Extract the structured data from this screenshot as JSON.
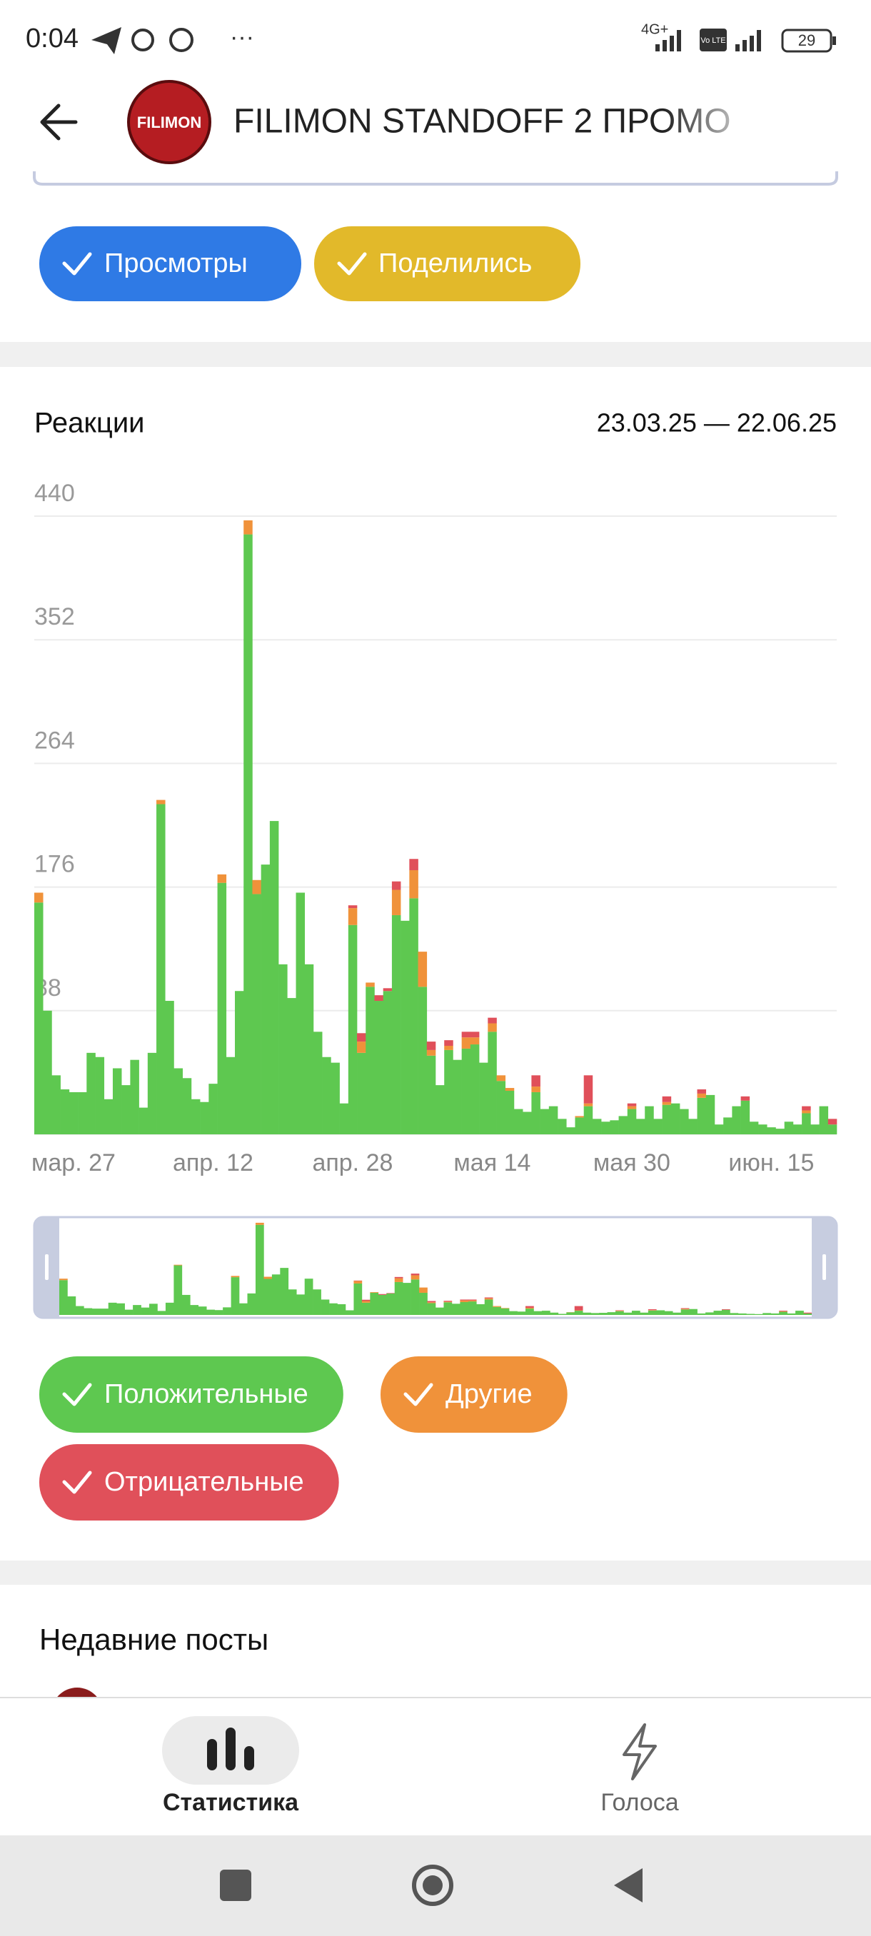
{
  "status_bar": {
    "time": "0:04",
    "network": "4G+",
    "volte": "Vo LTE",
    "battery": "29"
  },
  "header": {
    "title": "FILIMON STANDOFF 2 ПРОМО",
    "avatar_text": "FILIMON"
  },
  "top_chips": [
    "Просмотры",
    "Поделились"
  ],
  "reactions": {
    "title": "Реакции",
    "date_range": "23.03.25 — 22.06.25"
  },
  "chart_data": {
    "type": "bar",
    "stacked": true,
    "categories": [
      null,
      null,
      null,
      null,
      "мар. 27",
      null,
      null,
      null,
      null,
      null,
      null,
      null,
      null,
      null,
      null,
      null,
      null,
      null,
      null,
      null,
      "апр. 12",
      null,
      null,
      null,
      null,
      null,
      null,
      null,
      null,
      null,
      null,
      null,
      null,
      null,
      null,
      null,
      "апр. 28",
      null,
      null,
      null,
      null,
      null,
      null,
      null,
      null,
      null,
      null,
      null,
      null,
      null,
      null,
      null,
      "мая 14",
      null,
      null,
      null,
      null,
      null,
      null,
      null,
      null,
      null,
      null,
      null,
      null,
      null,
      null,
      null,
      "мая 30",
      null,
      null,
      null,
      null,
      null,
      null,
      null,
      null,
      null,
      null,
      null,
      null,
      null,
      null,
      null,
      "июн. 15",
      null,
      null,
      null,
      null,
      null,
      null,
      null
    ],
    "series": [
      {
        "name": "Положительные",
        "color": "#5ec850",
        "values": [
          165,
          88,
          42,
          32,
          30,
          30,
          58,
          55,
          25,
          47,
          35,
          53,
          19,
          58,
          235,
          95,
          47,
          40,
          25,
          23,
          36,
          179,
          55,
          102,
          427,
          171,
          192,
          223,
          121,
          97,
          172,
          121,
          73,
          55,
          51,
          22,
          149,
          58,
          105,
          95,
          102,
          156,
          152,
          168,
          105,
          56,
          35,
          60,
          53,
          61,
          64,
          51,
          73,
          38,
          31,
          18,
          16,
          30,
          18,
          20,
          11,
          5,
          12,
          20,
          11,
          9,
          10,
          13,
          18,
          11,
          20,
          11,
          21,
          22,
          18,
          11,
          26,
          28,
          7,
          12,
          20,
          24,
          9,
          7,
          5,
          4,
          9,
          7,
          15,
          7,
          20,
          7
        ]
      },
      {
        "name": "Другие",
        "color": "#f0923a",
        "values": [
          7,
          0,
          0,
          0,
          0,
          0,
          0,
          0,
          0,
          0,
          0,
          0,
          0,
          0,
          3,
          0,
          0,
          0,
          0,
          0,
          0,
          6,
          0,
          0,
          10,
          10,
          0,
          0,
          0,
          0,
          0,
          0,
          0,
          0,
          0,
          0,
          12,
          8,
          3,
          0,
          0,
          18,
          0,
          20,
          25,
          4,
          0,
          3,
          0,
          8,
          5,
          0,
          6,
          4,
          2,
          0,
          0,
          4,
          0,
          0,
          0,
          0,
          1,
          2,
          0,
          0,
          0,
          0,
          2,
          0,
          0,
          0,
          2,
          0,
          0,
          0,
          3,
          0,
          0,
          0,
          0,
          0,
          0,
          0,
          0,
          0,
          0,
          0,
          2,
          0,
          0,
          0
        ]
      },
      {
        "name": "Отрицательные",
        "color": "#e0505a",
        "values": [
          0,
          0,
          0,
          0,
          0,
          0,
          0,
          0,
          0,
          0,
          0,
          0,
          0,
          0,
          0,
          0,
          0,
          0,
          0,
          0,
          0,
          0,
          0,
          0,
          0,
          0,
          0,
          0,
          0,
          0,
          0,
          0,
          0,
          0,
          0,
          0,
          2,
          6,
          0,
          4,
          2,
          6,
          0,
          8,
          0,
          6,
          0,
          4,
          0,
          4,
          4,
          0,
          4,
          0,
          0,
          0,
          0,
          8,
          0,
          0,
          0,
          0,
          0,
          20,
          0,
          0,
          0,
          0,
          2,
          0,
          0,
          0,
          4,
          0,
          0,
          0,
          3,
          0,
          0,
          0,
          0,
          3,
          0,
          0,
          0,
          0,
          0,
          0,
          3,
          0,
          0,
          4
        ]
      }
    ],
    "ylim": [
      0,
      440
    ],
    "yticks": [
      0,
      88,
      176,
      264,
      352,
      440
    ],
    "grid": true
  },
  "recent_posts": {
    "title": "Недавние посты"
  },
  "bottom_nav": {
    "items": [
      "Статистика",
      "Голоса"
    ]
  }
}
